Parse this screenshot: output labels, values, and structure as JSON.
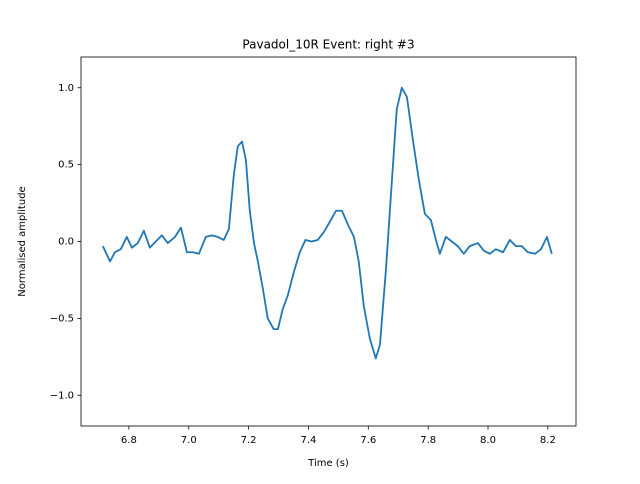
{
  "chart_data": {
    "type": "line",
    "title": "Pavadol_10R Event: right #3",
    "xlabel": "Time (s)",
    "ylabel": "Normalised amplitude",
    "x": [
      6.713,
      6.737,
      6.753,
      6.773,
      6.793,
      6.81,
      6.83,
      6.85,
      6.87,
      6.89,
      6.91,
      6.93,
      6.954,
      6.974,
      6.994,
      7.014,
      7.034,
      7.057,
      7.077,
      7.097,
      7.117,
      7.134,
      7.151,
      7.164,
      7.178,
      7.191,
      7.204,
      7.218,
      7.231,
      7.248,
      7.264,
      7.284,
      7.298,
      7.314,
      7.331,
      7.351,
      7.371,
      7.39,
      7.41,
      7.431,
      7.451,
      7.472,
      7.492,
      7.512,
      7.532,
      7.552,
      7.568,
      7.585,
      7.605,
      7.625,
      7.639,
      7.659,
      7.679,
      7.695,
      7.712,
      7.729,
      7.749,
      7.769,
      7.789,
      7.809,
      7.826,
      7.839,
      7.859,
      7.879,
      7.899,
      7.919,
      7.939,
      7.966,
      7.986,
      8.006,
      8.026,
      8.05,
      8.073,
      8.093,
      8.113,
      8.133,
      8.157,
      8.177,
      8.197,
      8.213
    ],
    "series": [
      {
        "name": "amplitude",
        "color": "#1f77b4",
        "values": [
          -0.03,
          -0.13,
          -0.07,
          -0.05,
          0.03,
          -0.04,
          -0.01,
          0.07,
          -0.04,
          0.0,
          0.04,
          -0.01,
          0.03,
          0.09,
          -0.07,
          -0.07,
          -0.08,
          0.03,
          0.04,
          0.03,
          0.01,
          0.08,
          0.44,
          0.62,
          0.65,
          0.53,
          0.2,
          -0.01,
          -0.13,
          -0.31,
          -0.5,
          -0.57,
          -0.57,
          -0.44,
          -0.35,
          -0.2,
          -0.07,
          0.01,
          0.0,
          0.01,
          0.06,
          0.13,
          0.2,
          0.2,
          0.11,
          0.03,
          -0.13,
          -0.42,
          -0.63,
          -0.76,
          -0.67,
          -0.18,
          0.4,
          0.86,
          1.0,
          0.94,
          0.66,
          0.4,
          0.18,
          0.14,
          0.01,
          -0.08,
          0.03,
          0.0,
          -0.03,
          -0.08,
          -0.03,
          -0.01,
          -0.06,
          -0.08,
          -0.05,
          -0.07,
          0.01,
          -0.03,
          -0.03,
          -0.07,
          -0.08,
          -0.05,
          0.03,
          -0.08
        ]
      }
    ],
    "xlim": [
      6.64,
      8.294
    ],
    "ylim": [
      -1.2,
      1.2
    ],
    "xticks": [
      6.8,
      {
        "value": 7,
        "label": "7.0"
      },
      7.2,
      7.4,
      7.6,
      7.8,
      {
        "value": 8,
        "label": "8.0"
      },
      8.2
    ],
    "yticks": [
      {
        "value": -1,
        "label": "−1.0"
      },
      {
        "value": -0.5,
        "label": "−0.5"
      },
      {
        "value": 0,
        "label": "0.0"
      },
      0.5,
      {
        "value": 1,
        "label": "1.0"
      }
    ]
  }
}
